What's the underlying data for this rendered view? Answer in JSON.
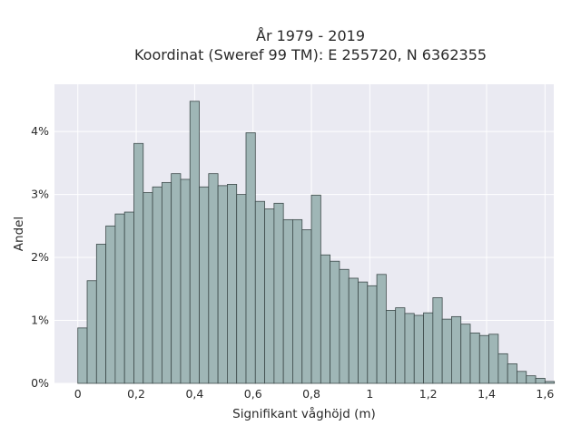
{
  "chart_data": {
    "type": "bar",
    "title_lines": [
      "År 1979 - 2019",
      "Koordinat (Sweref 99 TM): E 255720, N 6362355"
    ],
    "xlabel": "Signifikant våghöjd (m)",
    "ylabel": "Andel",
    "xlim": [
      -0.08,
      1.63
    ],
    "ylim": [
      0,
      4.75
    ],
    "x_ticks": [
      0,
      0.2,
      0.4,
      0.6,
      0.8,
      1.0,
      1.2,
      1.4,
      1.6
    ],
    "x_tick_labels": [
      "0",
      "0,2",
      "0,4",
      "0,6",
      "0,8",
      "1",
      "1,2",
      "1,4",
      "1,6"
    ],
    "y_ticks": [
      0,
      1,
      2,
      3,
      4
    ],
    "y_tick_labels": [
      "0%",
      "1%",
      "2%",
      "3%",
      "4%"
    ],
    "bin_start": 0.0,
    "bin_width": 0.032,
    "values": [
      0.88,
      1.63,
      2.21,
      2.5,
      2.69,
      2.72,
      3.81,
      3.03,
      3.12,
      3.19,
      3.33,
      3.24,
      4.48,
      3.12,
      3.33,
      3.14,
      3.16,
      3.0,
      3.98,
      2.89,
      2.77,
      2.86,
      2.6,
      2.6,
      2.44,
      2.99,
      2.04,
      1.94,
      1.81,
      1.67,
      1.61,
      1.55,
      1.73,
      1.16,
      1.2,
      1.11,
      1.08,
      1.12,
      1.36,
      1.02,
      1.06,
      0.94,
      0.8,
      0.76,
      0.78,
      0.47,
      0.31,
      0.19,
      0.12,
      0.08,
      0.03
    ],
    "colors": {
      "bar_fill": "#9fb6b6",
      "bar_edge": "#3d4a4a",
      "plot_bg": "#eaeaf2"
    },
    "grid": true
  }
}
